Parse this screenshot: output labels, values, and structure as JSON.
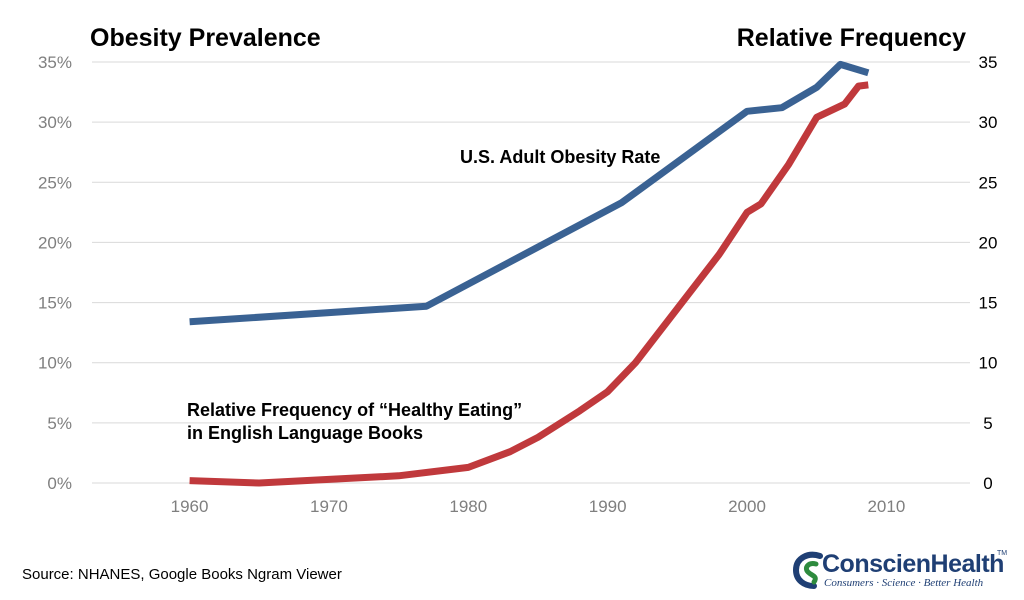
{
  "chart_data": {
    "type": "line",
    "title_left": "Obesity Prevalence",
    "title_right": "Relative Frequency",
    "x_ticks": [
      1960,
      1970,
      1980,
      1990,
      2000,
      2010
    ],
    "xlim": [
      1953,
      2016
    ],
    "y_left_ticks": [
      "0%",
      "5%",
      "10%",
      "15%",
      "20%",
      "25%",
      "30%",
      "35%"
    ],
    "y_left_lim": [
      0,
      35
    ],
    "y_right_ticks": [
      "0",
      "5",
      "10",
      "15",
      "20",
      "25",
      "30",
      "35"
    ],
    "y_right_lim": [
      0,
      35
    ],
    "grid": true,
    "series": [
      {
        "name": "U.S. Adult Obesity Rate",
        "color": "#3a6293",
        "axis": "left",
        "points": [
          [
            1960,
            13.4
          ],
          [
            1977,
            14.7
          ],
          [
            1991,
            23.3
          ],
          [
            2000,
            30.9
          ],
          [
            2002.5,
            31.2
          ],
          [
            2005,
            32.9
          ],
          [
            2006.7,
            34.8
          ],
          [
            2008.7,
            34.1
          ]
        ]
      },
      {
        "name": "Relative Frequency of “Healthy Eating” in English Language Books",
        "color": "#c0393c",
        "axis": "right",
        "points": [
          [
            1960,
            0.2
          ],
          [
            1965,
            0.0
          ],
          [
            1970,
            0.3
          ],
          [
            1975,
            0.6
          ],
          [
            1980,
            1.3
          ],
          [
            1983,
            2.6
          ],
          [
            1985,
            3.8
          ],
          [
            1988,
            6.0
          ],
          [
            1990,
            7.6
          ],
          [
            1992,
            10.0
          ],
          [
            1995,
            14.5
          ],
          [
            1998,
            19.0
          ],
          [
            2000,
            22.5
          ],
          [
            2001,
            23.2
          ],
          [
            2003,
            26.5
          ],
          [
            2005,
            30.4
          ],
          [
            2007,
            31.5
          ],
          [
            2008,
            33.0
          ],
          [
            2008.7,
            33.1
          ]
        ]
      }
    ]
  },
  "labels": {
    "blue_label": "U.S. Adult Obesity Rate",
    "red_label_line1": "Relative Frequency of “Healthy Eating”",
    "red_label_line2": "in English Language Books"
  },
  "source": "Source: NHANES, Google Books Ngram Viewer",
  "logo": {
    "name": "ConscienHealth",
    "trademark": "TM",
    "tagline": "Consumers · Science · Better Health",
    "colors": {
      "primary": "#1f3f74",
      "accent": "#2e8b3e"
    }
  }
}
